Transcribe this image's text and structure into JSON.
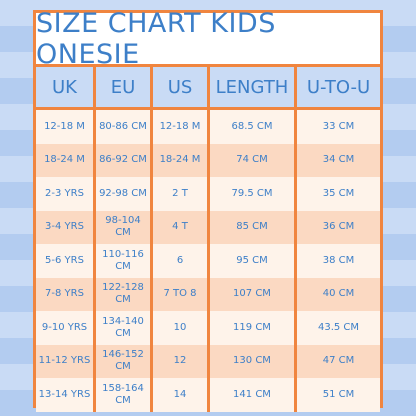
{
  "title": "SIZE CHART KIDS ONESIE",
  "headers": [
    "UK",
    "EU",
    "US",
    "LENGTH",
    "U-TO-U"
  ],
  "rows": [
    [
      "12-18 M",
      "80-86 CM",
      "12-18 M",
      "68.5 CM",
      "33 CM"
    ],
    [
      "18-24 M",
      "86-92 CM",
      "18-24 M",
      "74 CM",
      "34 CM"
    ],
    [
      "2-3 YRS",
      "92-98 CM",
      "2 T",
      "79.5 CM",
      "35 CM"
    ],
    [
      "3-4 YRS",
      "98-104 CM",
      "4 T",
      "85 CM",
      "36 CM"
    ],
    [
      "5-6 YRS",
      "110-116 CM",
      "6",
      "95 CM",
      "38 CM"
    ],
    [
      "7-8 YRS",
      "122-128 CM",
      "7 TO 8",
      "107 CM",
      "40 CM"
    ],
    [
      "9-10 YRS",
      "134-140 CM",
      "10",
      "119 CM",
      "43.5 CM"
    ],
    [
      "11-12 YRS",
      "146-152 CM",
      "12",
      "130 CM",
      "47 CM"
    ],
    [
      "13-14 YRS",
      "158-164 CM",
      "14",
      "141 CM",
      "51 CM"
    ]
  ],
  "colors": {
    "border": "#f0853f",
    "text": "#3d7fc8",
    "header_bg": "#c9dbf5",
    "row_light": "#fef3ea",
    "row_dark": "#fbd9c2"
  }
}
